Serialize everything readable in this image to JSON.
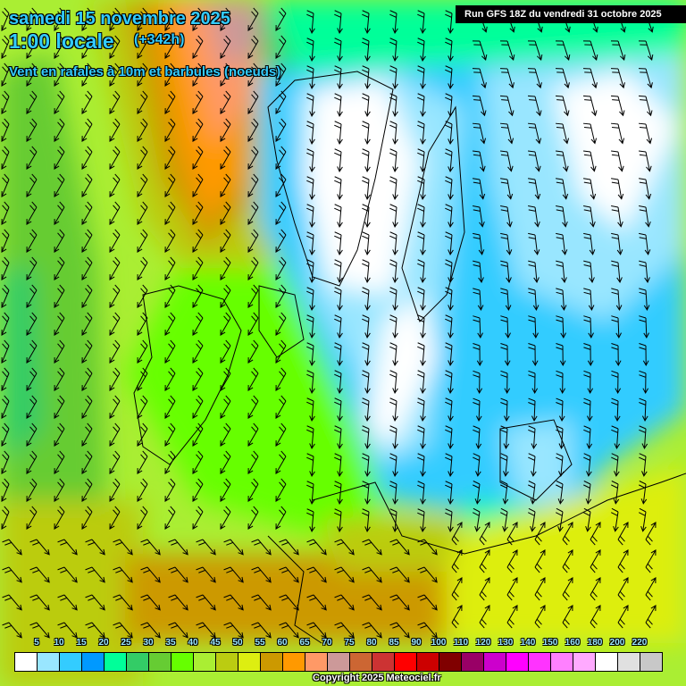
{
  "header": {
    "date": "samedi 15 novembre 2025",
    "time": "1:00 locale",
    "lead": "(+342h)",
    "variable": "Vent en rafales à 10m et barbules (noeuds)",
    "run": "Run GFS 18Z du vendredi 31 octobre 2025"
  },
  "legend": {
    "labels": [
      "5",
      "10",
      "15",
      "20",
      "25",
      "30",
      "35",
      "40",
      "45",
      "50",
      "55",
      "60",
      "65",
      "70",
      "75",
      "80",
      "85",
      "90",
      "100",
      "110",
      "120",
      "130",
      "140",
      "150",
      "160",
      "180",
      "200",
      "220",
      "240"
    ],
    "colors": [
      "#ffffff",
      "#99e6ff",
      "#33ccff",
      "#0099ff",
      "#00ff99",
      "#33cc66",
      "#66cc33",
      "#66ff00",
      "#aaee33",
      "#bbcc11",
      "#ddee11",
      "#cc9900",
      "#ff9900",
      "#ff9966",
      "#cc9999",
      "#cc6633",
      "#cc3333",
      "#ff0000",
      "#cc0000",
      "#800000",
      "#990066",
      "#cc00cc",
      "#ff00ff",
      "#ff33ff",
      "#ff80ff",
      "#ffaaff",
      "#ffffff",
      "#e0e0e0",
      "#c8c8c8"
    ]
  },
  "footer": {
    "copyright": "Copyright 2025 Meteociel.fr"
  }
}
